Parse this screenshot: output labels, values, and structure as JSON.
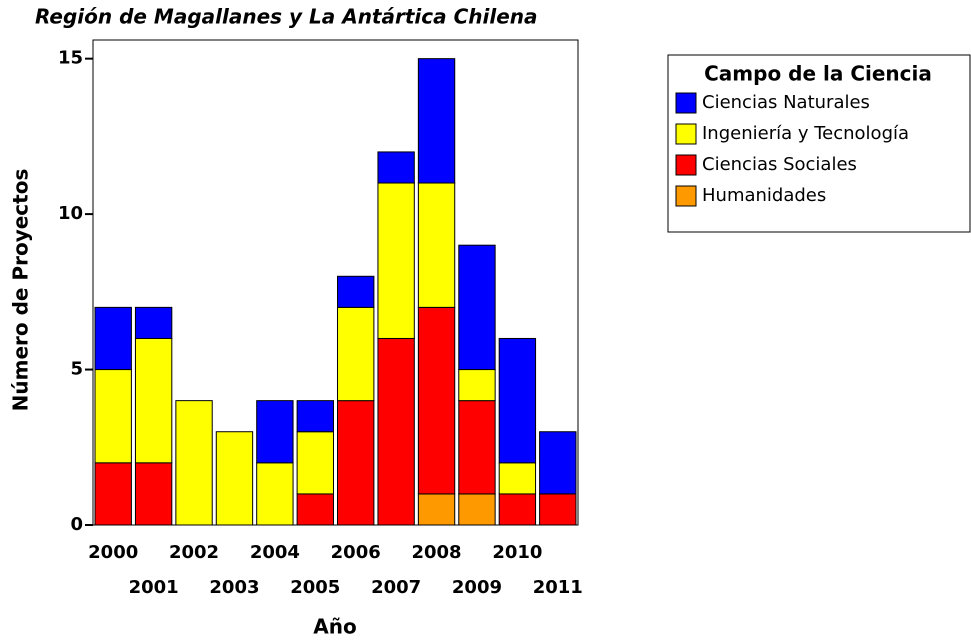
{
  "chart_data": {
    "type": "stacked_bar",
    "title": "Región de Magallanes y La Antártica Chilena",
    "x_label": "Año",
    "y_label": "Número de Proyectos",
    "legend_title": "Campo de la Ciencia",
    "categories": [
      "2000",
      "2001",
      "2002",
      "2003",
      "2004",
      "2005",
      "2006",
      "2007",
      "2008",
      "2009",
      "2010",
      "2011"
    ],
    "series": [
      {
        "name": "Ciencias Naturales",
        "color": "#0000ff",
        "values": [
          2,
          1,
          0,
          0,
          2,
          1,
          1,
          1,
          4,
          4,
          4,
          2
        ]
      },
      {
        "name": "Ingeniería y Tecnología",
        "color": "#ffff00",
        "values": [
          3,
          4,
          4,
          3,
          2,
          2,
          3,
          5,
          4,
          1,
          1,
          0
        ]
      },
      {
        "name": "Ciencias Sociales",
        "color": "#ff0000",
        "values": [
          2,
          2,
          0,
          0,
          0,
          1,
          4,
          6,
          6,
          3,
          1,
          1
        ]
      },
      {
        "name": "Humanidades",
        "color": "#ff9900",
        "values": [
          0,
          0,
          0,
          0,
          0,
          0,
          0,
          0,
          1,
          1,
          0,
          0
        ]
      }
    ],
    "ylim": [
      0,
      15.6
    ],
    "yticks": [
      0,
      5,
      10,
      15
    ],
    "legend": "right"
  }
}
